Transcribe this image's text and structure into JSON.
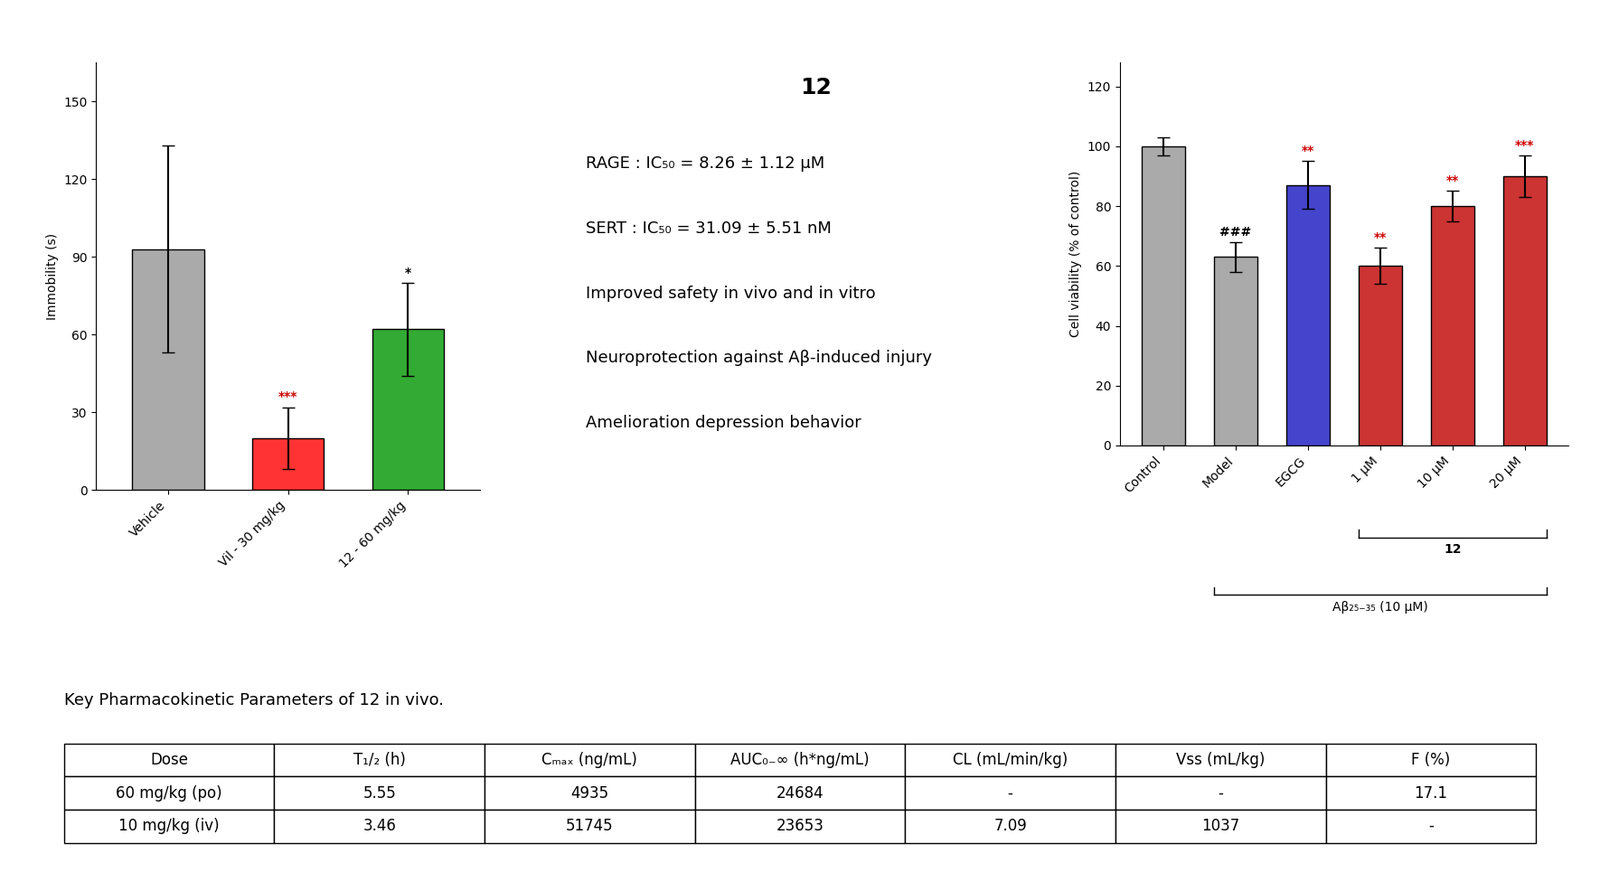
{
  "chart_data": [
    {
      "type": "bar",
      "categories": [
        "Vehicle",
        "Vil - 30 mg/kg",
        "12 - 60 mg/kg"
      ],
      "values": [
        93,
        20,
        62
      ],
      "errors": [
        40,
        12,
        18
      ],
      "colors": [
        "#aaaaaa",
        "#ff3333",
        "#33aa33"
      ],
      "ylabel": "Immobility (s)",
      "ylim": [
        0,
        165
      ],
      "yticks": [
        0,
        30,
        60,
        90,
        120,
        150
      ],
      "annotations": [
        null,
        "***",
        "*"
      ],
      "annotation_colors": [
        null,
        "#cc0000",
        "#000000"
      ]
    },
    {
      "type": "text",
      "title": "12",
      "lines": [
        "RAGE : IC₅₀ = 8.26 ± 1.12 μM",
        "SERT : IC₅₀ = 31.09 ± 5.51 nM",
        "Improved safety in vivo and in vitro",
        "Neuroprotection against Aβ-induced injury",
        "Amelioration depression behavior"
      ]
    },
    {
      "type": "bar",
      "categories": [
        "Control",
        "Model",
        "EGCG",
        "1 μM",
        "10 μM",
        "20 μM"
      ],
      "values": [
        100,
        63,
        87,
        60,
        80,
        90
      ],
      "errors": [
        3,
        5,
        8,
        6,
        5,
        7
      ],
      "colors": [
        "#aaaaaa",
        "#aaaaaa",
        "#4444cc",
        "#cc3333",
        "#cc3333",
        "#cc3333"
      ],
      "ylabel": "Cell viability (% of control)",
      "ylim": [
        0,
        128
      ],
      "yticks": [
        0,
        20,
        40,
        60,
        80,
        100,
        120
      ],
      "annotations": [
        null,
        "###",
        "**",
        "**",
        "**",
        "***"
      ],
      "annotation_colors": [
        null,
        "#000000",
        "#cc0000",
        "#cc0000",
        "#cc0000",
        "#cc0000"
      ],
      "groups": [
        {
          "label": "12",
          "from": 3,
          "to": 5
        },
        {
          "label": "Aβ₂₅₋₃₅ (10 μM)",
          "from": 1,
          "to": 5
        }
      ]
    },
    {
      "type": "table",
      "title": "Key Pharmacokinetic Parameters of 12 in vivo.",
      "columns": [
        "Dose",
        "T₁/₂ (h)",
        "Cₘₐₓ (ng/mL)",
        "AUC₀₋∞ (h*ng/mL)",
        "CL (mL/min/kg)",
        "Vss (mL/kg)",
        "F (%)"
      ],
      "rows": [
        [
          "60 mg/kg (po)",
          "5.55",
          "4935",
          "24684",
          "-",
          "-",
          "17.1"
        ],
        [
          "10 mg/kg (iv)",
          "3.46",
          "51745",
          "23653",
          "7.09",
          "1037",
          "-"
        ]
      ]
    }
  ]
}
